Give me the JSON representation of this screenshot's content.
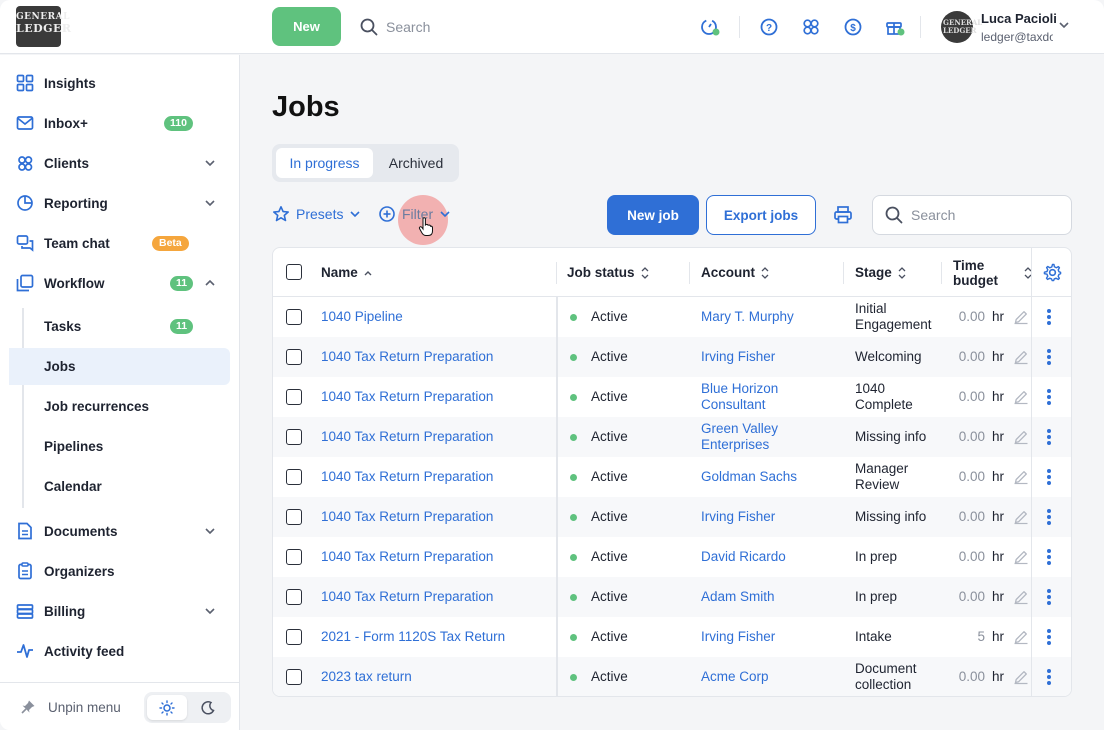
{
  "app": {
    "logo_lines": [
      "GENERAL",
      "LEDGER"
    ],
    "new_button": "New",
    "search_placeholder": "Search",
    "top_icons": [
      "timer-icon",
      "help-icon",
      "apps-icon",
      "billing-dollar-icon",
      "gift-icon"
    ],
    "user": {
      "name": "Luca Pacioli",
      "email": "ledger@taxdome.com",
      "avatar_text": "GENERAL LEDGER"
    }
  },
  "sidebar": {
    "items": [
      {
        "label": "Insights",
        "icon": "grid-icon"
      },
      {
        "label": "Inbox+",
        "icon": "mail-icon",
        "badge": "110"
      },
      {
        "label": "Clients",
        "icon": "users-icon"
      },
      {
        "label": "Reporting",
        "icon": "pie-chart-icon"
      },
      {
        "label": "Team chat",
        "icon": "chat-icon",
        "badge": "Beta"
      },
      {
        "label": "Workflow",
        "icon": "workflow-icon",
        "badge": "11"
      }
    ],
    "workflow_sub": [
      {
        "label": "Tasks",
        "badge": "11"
      },
      {
        "label": "Jobs"
      },
      {
        "label": "Job recurrences"
      },
      {
        "label": "Pipelines"
      },
      {
        "label": "Calendar"
      }
    ],
    "items_bottom": [
      {
        "label": "Documents",
        "icon": "document-icon"
      },
      {
        "label": "Organizers",
        "icon": "clipboard-icon"
      },
      {
        "label": "Billing",
        "icon": "stack-icon"
      },
      {
        "label": "Activity feed",
        "icon": "activity-icon"
      }
    ],
    "unpin_label": "Unpin menu"
  },
  "main": {
    "title": "Jobs",
    "tabs": [
      "In progress",
      "Archived"
    ],
    "presets_label": "Presets",
    "filter_label": "Filter",
    "new_job_label": "New job",
    "export_label": "Export jobs",
    "search_placeholder": "Search"
  },
  "table": {
    "headers": {
      "name": "Name",
      "status": "Job status",
      "account": "Account",
      "stage": "Stage",
      "budget_1": "Time",
      "budget_2": "budget"
    },
    "unit": "hr",
    "rows": [
      {
        "name": "1040 Pipeline",
        "status": "Active",
        "account": [
          "Mary T. Murphy"
        ],
        "stage": [
          "Initial",
          "Engagement"
        ],
        "budget": "0.00"
      },
      {
        "name": "1040 Tax Return Preparation",
        "status": "Active",
        "account": [
          "Irving Fisher"
        ],
        "stage": [
          "Welcoming"
        ],
        "budget": "0.00"
      },
      {
        "name": "1040 Tax Return Preparation",
        "status": "Active",
        "account": [
          "Blue Horizon",
          "Consultant"
        ],
        "stage": [
          "1040",
          "Complete"
        ],
        "budget": "0.00"
      },
      {
        "name": "1040 Tax Return Preparation",
        "status": "Active",
        "account": [
          "Green Valley",
          "Enterprises"
        ],
        "stage": [
          "Missing info"
        ],
        "budget": "0.00"
      },
      {
        "name": "1040 Tax Return Preparation",
        "status": "Active",
        "account": [
          "Goldman Sachs"
        ],
        "stage": [
          "Manager",
          "Review"
        ],
        "budget": "0.00"
      },
      {
        "name": "1040 Tax Return Preparation",
        "status": "Active",
        "account": [
          "Irving Fisher"
        ],
        "stage": [
          "Missing info"
        ],
        "budget": "0.00"
      },
      {
        "name": "1040 Tax Return Preparation",
        "status": "Active",
        "account": [
          "David Ricardo"
        ],
        "stage": [
          "In prep"
        ],
        "budget": "0.00"
      },
      {
        "name": "1040 Tax Return Preparation",
        "status": "Active",
        "account": [
          "Adam Smith"
        ],
        "stage": [
          "In prep"
        ],
        "budget": "0.00"
      },
      {
        "name": "2021 - Form 1120S Tax Return",
        "status": "Active",
        "account": [
          "Irving Fisher"
        ],
        "stage": [
          "Intake"
        ],
        "budget": "5"
      },
      {
        "name": "2023 tax return",
        "status": "Active",
        "account": [
          "Acme Corp"
        ],
        "stage": [
          "Document",
          "collection"
        ],
        "budget": "0.00"
      }
    ]
  },
  "colors": {
    "primary": "#2f6fd6",
    "success": "#5fc27e",
    "beta": "#f5a63d"
  }
}
